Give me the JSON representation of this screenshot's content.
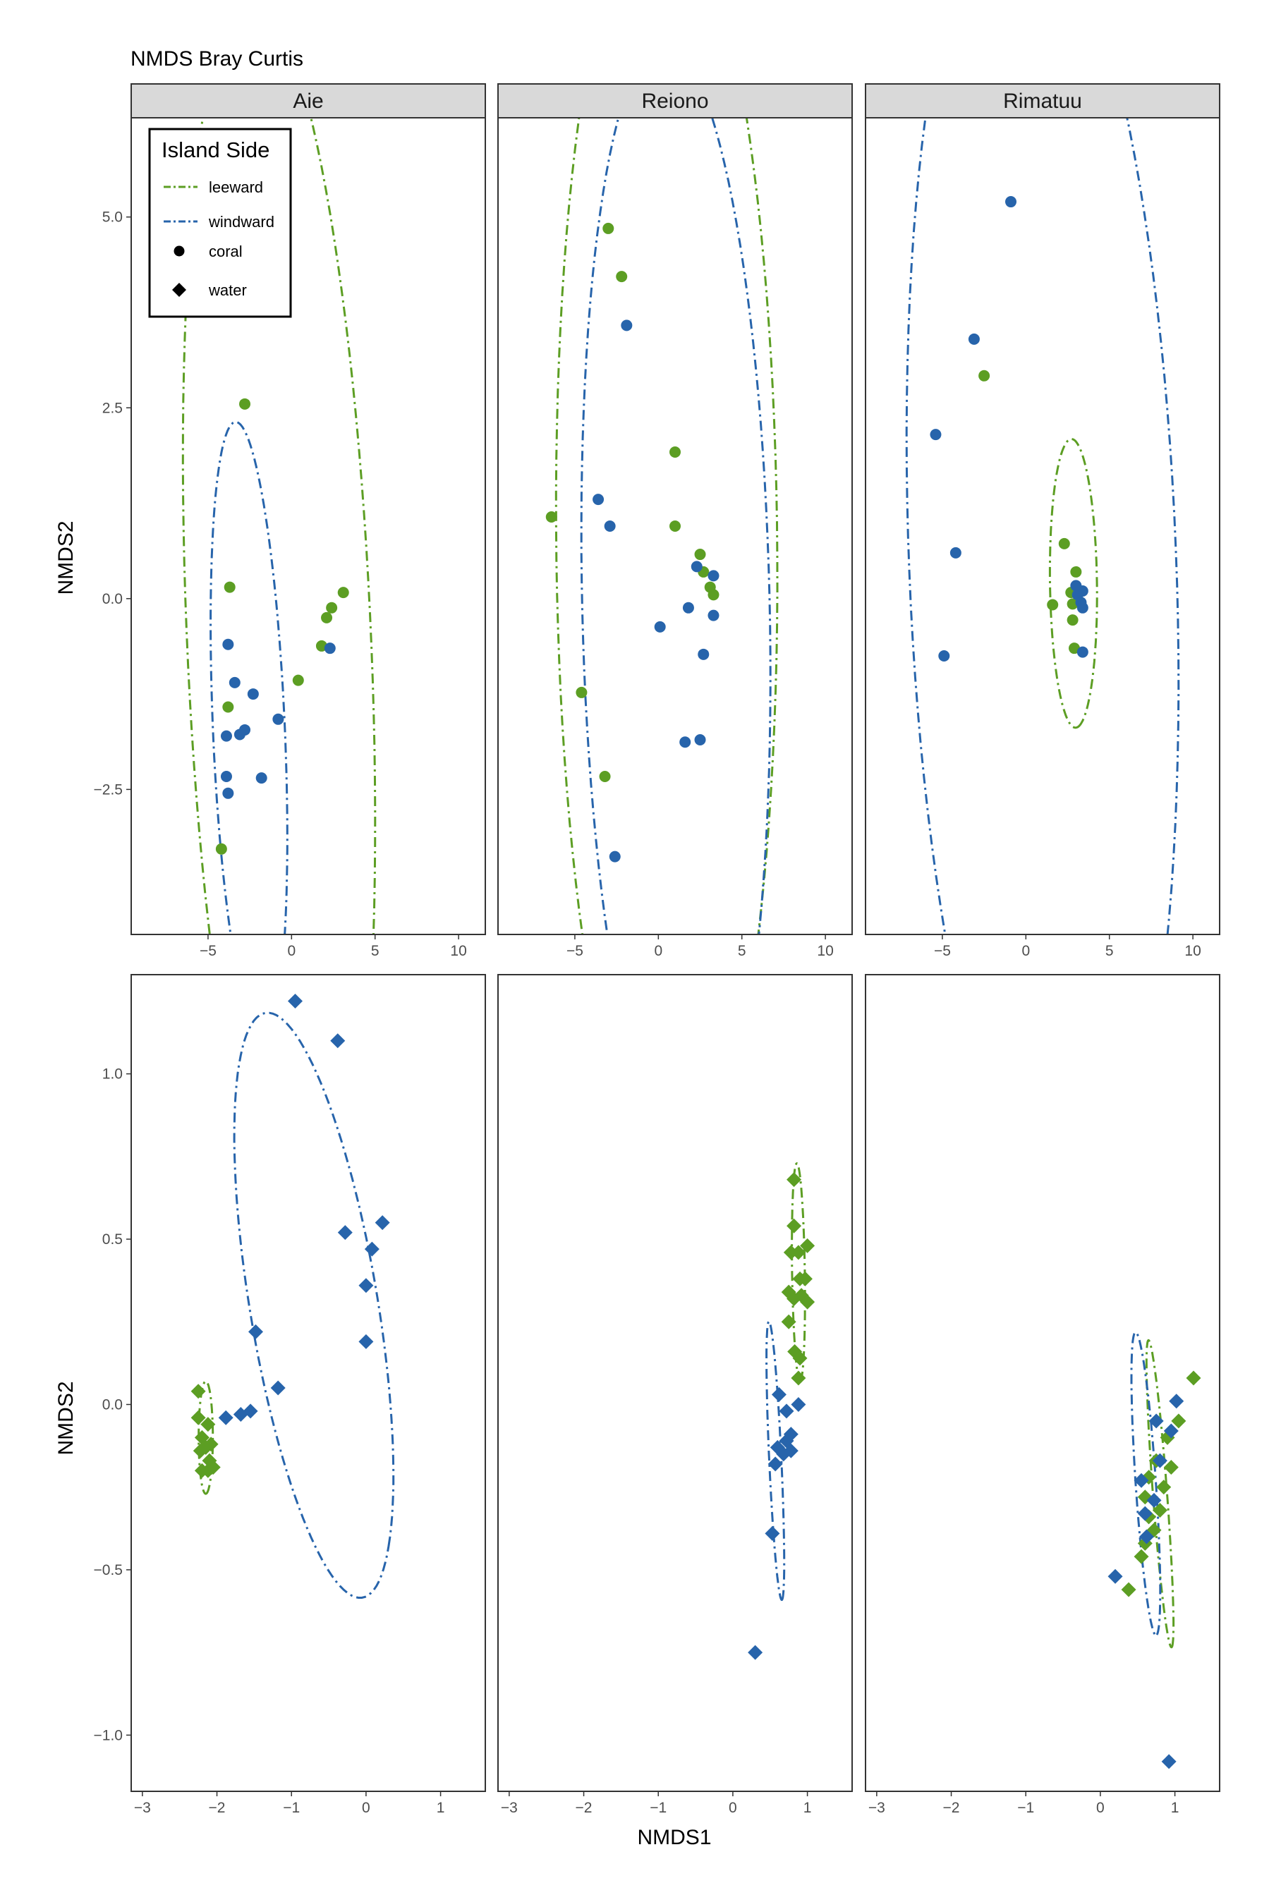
{
  "title": "NMDS Bray Curtis",
  "chart_data": {
    "type": "scatter",
    "facets": {
      "columns": [
        "Aie",
        "Reiono",
        "Rimatuu"
      ],
      "rows": [
        "coral",
        "water"
      ]
    },
    "xlabel": "NMDS1",
    "ylabel": "NMDS2",
    "grid": false,
    "legend": {
      "title": "Island Side",
      "placement": "top-left inside first panel",
      "entries": [
        {
          "label": "leeward",
          "kind": "line",
          "color": "#5c9e23"
        },
        {
          "label": "windward",
          "kind": "line",
          "color": "#2764ab"
        },
        {
          "label": "coral",
          "kind": "shape",
          "shape": "circle"
        },
        {
          "label": "water",
          "kind": "shape",
          "shape": "diamond"
        }
      ]
    },
    "colors": {
      "leeward": "#5c9e23",
      "windward": "#2764ab"
    },
    "row_scales": [
      {
        "name": "coral",
        "xlim": [
          -9.6,
          11.6
        ],
        "ylim": [
          -4.4,
          6.3
        ],
        "xticks": [
          -5,
          0,
          5,
          10
        ],
        "xtick_labels": [
          "−5",
          "0",
          "5",
          "10"
        ],
        "yticks": [
          -2.5,
          0,
          2.5,
          5
        ],
        "ytick_labels": [
          "−2.5",
          "0.0",
          "2.5",
          "5.0"
        ]
      },
      {
        "name": "water",
        "xlim": [
          -3.15,
          1.6
        ],
        "ylim": [
          -1.17,
          1.3
        ],
        "xticks": [
          -3,
          -2,
          -1,
          0,
          1
        ],
        "xtick_labels": [
          "−3",
          "−2",
          "−1",
          "0",
          "1"
        ],
        "yticks": [
          -1,
          -0.5,
          0,
          0.5,
          1
        ],
        "ytick_labels": [
          "−1.0",
          "−0.5",
          "0.0",
          "0.5",
          "1.0"
        ]
      }
    ],
    "panels": [
      {
        "row": 0,
        "col": 0,
        "island": "Aie",
        "sample": "coral",
        "series": [
          {
            "name": "leeward",
            "points": [
              [
                -2.8,
                2.55
              ],
              [
                -3.7,
                0.15
              ],
              [
                3.1,
                0.08
              ],
              [
                2.4,
                -0.12
              ],
              [
                2.1,
                -0.25
              ],
              [
                1.8,
                -0.62
              ],
              [
                0.4,
                -1.07
              ],
              [
                -3.8,
                -1.42
              ],
              [
                -4.2,
                -3.28
              ]
            ]
          },
          {
            "name": "windward",
            "points": [
              [
                -3.8,
                -0.6
              ],
              [
                2.3,
                -0.65
              ],
              [
                -3.4,
                -1.1
              ],
              [
                -2.3,
                -1.25
              ],
              [
                -0.8,
                -1.58
              ],
              [
                -2.8,
                -1.72
              ],
              [
                -3.1,
                -1.78
              ],
              [
                -3.9,
                -1.8
              ],
              [
                -3.9,
                -2.33
              ],
              [
                -1.8,
                -2.35
              ],
              [
                -3.8,
                -2.55
              ]
            ]
          }
        ],
        "ellipses": [
          {
            "name": "leeward",
            "center": [
              -0.75,
              -0.53
            ],
            "a": 8.7,
            "b": 5.35,
            "angle_deg": -72
          },
          {
            "name": "windward",
            "center": [
              -2.55,
              -1.73
            ],
            "a": 4.15,
            "b": 2.1,
            "angle_deg": -75
          }
        ]
      },
      {
        "row": 0,
        "col": 1,
        "island": "Reiono",
        "sample": "coral",
        "series": [
          {
            "name": "leeward",
            "points": [
              [
                -3.0,
                4.85
              ],
              [
                -2.2,
                4.22
              ],
              [
                1.0,
                1.92
              ],
              [
                -6.4,
                1.07
              ],
              [
                1.0,
                0.95
              ],
              [
                2.5,
                0.58
              ],
              [
                2.7,
                0.35
              ],
              [
                3.1,
                0.15
              ],
              [
                3.3,
                0.05
              ],
              [
                -4.6,
                -1.23
              ],
              [
                -3.2,
                -2.33
              ]
            ]
          },
          {
            "name": "windward",
            "points": [
              [
                -1.9,
                3.58
              ],
              [
                -3.6,
                1.3
              ],
              [
                -2.9,
                0.95
              ],
              [
                2.3,
                0.42
              ],
              [
                3.3,
                0.3
              ],
              [
                1.8,
                -0.12
              ],
              [
                3.3,
                -0.22
              ],
              [
                0.1,
                -0.37
              ],
              [
                2.7,
                -0.73
              ],
              [
                2.5,
                -1.85
              ],
              [
                1.6,
                -1.88
              ],
              [
                -2.6,
                -3.38
              ]
            ]
          }
        ],
        "ellipses": [
          {
            "name": "leeward",
            "center": [
              0.5,
              0.75
            ],
            "a": 8.53,
            "b": 6.6,
            "angle_deg": -84
          },
          {
            "name": "windward",
            "center": [
              1.05,
              -0.07
            ],
            "a": 7.44,
            "b": 5.55,
            "angle_deg": -77
          }
        ]
      },
      {
        "row": 0,
        "col": 2,
        "island": "Rimatuu",
        "sample": "coral",
        "series": [
          {
            "name": "leeward",
            "points": [
              [
                -2.5,
                2.92
              ],
              [
                2.3,
                0.72
              ],
              [
                3.0,
                0.35
              ],
              [
                2.7,
                0.08
              ],
              [
                1.6,
                -0.08
              ],
              [
                2.8,
                -0.07
              ],
              [
                2.8,
                -0.28
              ],
              [
                2.9,
                -0.65
              ]
            ]
          },
          {
            "name": "windward",
            "points": [
              [
                -0.9,
                5.2
              ],
              [
                -3.1,
                3.4
              ],
              [
                -5.4,
                2.15
              ],
              [
                -4.2,
                0.6
              ],
              [
                3.0,
                0.17
              ],
              [
                3.4,
                0.1
              ],
              [
                3.1,
                0.05
              ],
              [
                3.3,
                -0.05
              ],
              [
                3.4,
                -0.12
              ],
              [
                3.4,
                -0.7
              ],
              [
                -4.9,
                -0.75
              ]
            ]
          }
        ],
        "ellipses": [
          {
            "name": "leeward",
            "center": [
              2.85,
              0.2
            ],
            "a": 1.9,
            "b": 1.4,
            "angle_deg": -82
          },
          {
            "name": "windward",
            "center": [
              1.0,
              0.5
            ],
            "a": 9.3,
            "b": 7.6,
            "angle_deg": -57
          }
        ]
      },
      {
        "row": 1,
        "col": 0,
        "island": "Aie",
        "sample": "water",
        "series": [
          {
            "name": "leeward",
            "points": [
              [
                -2.25,
                0.04
              ],
              [
                -2.25,
                -0.04
              ],
              [
                -2.12,
                -0.06
              ],
              [
                -2.2,
                -0.1
              ],
              [
                -2.08,
                -0.12
              ],
              [
                -2.15,
                -0.13
              ],
              [
                -2.22,
                -0.14
              ],
              [
                -2.1,
                -0.17
              ],
              [
                -2.05,
                -0.19
              ],
              [
                -2.2,
                -0.2
              ],
              [
                -2.12,
                -0.2
              ]
            ]
          },
          {
            "name": "windward",
            "points": [
              [
                -0.95,
                1.22
              ],
              [
                -0.38,
                1.1
              ],
              [
                0.22,
                0.55
              ],
              [
                -0.28,
                0.52
              ],
              [
                0.08,
                0.47
              ],
              [
                0.0,
                0.36
              ],
              [
                -1.48,
                0.22
              ],
              [
                0.0,
                0.19
              ],
              [
                -1.18,
                0.05
              ],
              [
                -1.55,
                -0.02
              ],
              [
                -1.68,
                -0.03
              ],
              [
                -1.88,
                -0.04
              ]
            ]
          }
        ],
        "ellipses": [
          {
            "name": "leeward",
            "center": [
              -2.15,
              -0.1
            ],
            "a": 0.17,
            "b": 0.095,
            "angle_deg": -90
          },
          {
            "name": "windward",
            "center": [
              -0.7,
              0.3
            ],
            "a": 1.24,
            "b": 0.62,
            "angle_deg": -36
          }
        ]
      },
      {
        "row": 1,
        "col": 1,
        "island": "Reiono",
        "sample": "water",
        "series": [
          {
            "name": "leeward",
            "points": [
              [
                0.82,
                0.68
              ],
              [
                0.82,
                0.54
              ],
              [
                1.0,
                0.48
              ],
              [
                0.88,
                0.46
              ],
              [
                0.78,
                0.46
              ],
              [
                0.9,
                0.38
              ],
              [
                0.97,
                0.38
              ],
              [
                0.75,
                0.34
              ],
              [
                0.92,
                0.33
              ],
              [
                0.82,
                0.32
              ],
              [
                1.0,
                0.31
              ],
              [
                0.75,
                0.25
              ],
              [
                0.83,
                0.16
              ],
              [
                0.9,
                0.14
              ],
              [
                0.88,
                0.08
              ]
            ]
          },
          {
            "name": "windward",
            "points": [
              [
                0.62,
                0.03
              ],
              [
                0.88,
                0.0
              ],
              [
                0.72,
                -0.02
              ],
              [
                0.78,
                -0.09
              ],
              [
                0.72,
                -0.11
              ],
              [
                0.6,
                -0.13
              ],
              [
                0.78,
                -0.14
              ],
              [
                0.68,
                -0.15
              ],
              [
                0.57,
                -0.18
              ],
              [
                0.53,
                -0.39
              ],
              [
                0.3,
                -0.75
              ]
            ]
          }
        ],
        "ellipses": [
          {
            "name": "leeward",
            "center": [
              0.88,
              0.4
            ],
            "a": 0.33,
            "b": 0.085,
            "angle_deg": -86
          },
          {
            "name": "windward",
            "center": [
              0.57,
              -0.17
            ],
            "a": 0.43,
            "b": 0.08,
            "angle_deg": -78
          }
        ]
      },
      {
        "row": 1,
        "col": 2,
        "island": "Rimatuu",
        "sample": "water",
        "series": [
          {
            "name": "leeward",
            "points": [
              [
                1.25,
                0.08
              ],
              [
                1.05,
                -0.05
              ],
              [
                0.9,
                -0.1
              ],
              [
                0.75,
                -0.17
              ],
              [
                0.95,
                -0.19
              ],
              [
                0.65,
                -0.22
              ],
              [
                0.85,
                -0.25
              ],
              [
                0.6,
                -0.28
              ],
              [
                0.8,
                -0.32
              ],
              [
                0.65,
                -0.34
              ],
              [
                0.72,
                -0.38
              ],
              [
                0.6,
                -0.42
              ],
              [
                0.55,
                -0.46
              ],
              [
                0.38,
                -0.56
              ]
            ]
          },
          {
            "name": "windward",
            "points": [
              [
                1.02,
                0.01
              ],
              [
                0.75,
                -0.05
              ],
              [
                0.95,
                -0.08
              ],
              [
                0.8,
                -0.17
              ],
              [
                0.55,
                -0.23
              ],
              [
                0.72,
                -0.29
              ],
              [
                0.6,
                -0.33
              ],
              [
                0.62,
                -0.4
              ],
              [
                0.2,
                -0.52
              ],
              [
                0.92,
                -1.08
              ]
            ]
          }
        ],
        "ellipses": [
          {
            "name": "leeward",
            "center": [
              0.8,
              -0.27
            ],
            "a": 0.49,
            "b": 0.09,
            "angle_deg": -71
          },
          {
            "name": "windward",
            "center": [
              0.61,
              -0.24
            ],
            "a": 0.48,
            "b": 0.13,
            "angle_deg": -72
          }
        ]
      }
    ]
  }
}
